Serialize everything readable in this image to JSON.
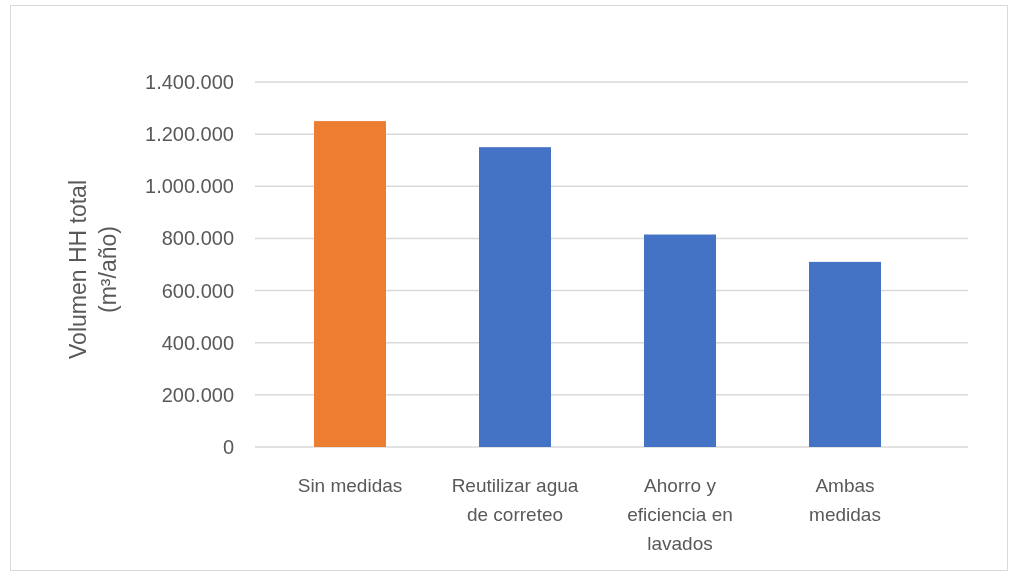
{
  "chart_data": {
    "type": "bar",
    "categories": [
      "Sin medidas",
      "Reutilizar agua de correteo",
      "Ahorro y eficiencia en lavados",
      "Ambas medidas"
    ],
    "values": [
      1250000,
      1150000,
      815000,
      710000
    ],
    "colors": [
      "#ed7d31",
      "#4472c4",
      "#4472c4",
      "#4472c4"
    ],
    "ylabel": "Volumen HH total (m³/año)",
    "ylim": [
      0,
      1400000
    ],
    "yticks": [
      0,
      {
        "value": 200000,
        "label": "200.000"
      },
      {
        "value": 400000,
        "label": "400.000"
      },
      {
        "value": 600000,
        "label": "600.000"
      },
      {
        "value": 800000,
        "label": "800.000"
      },
      {
        "value": 1000000,
        "label": "1.000.000"
      },
      {
        "value": 1200000,
        "label": "1.200.000"
      },
      {
        "value": 1400000,
        "label": "1.400.000"
      }
    ],
    "grid": "y"
  }
}
